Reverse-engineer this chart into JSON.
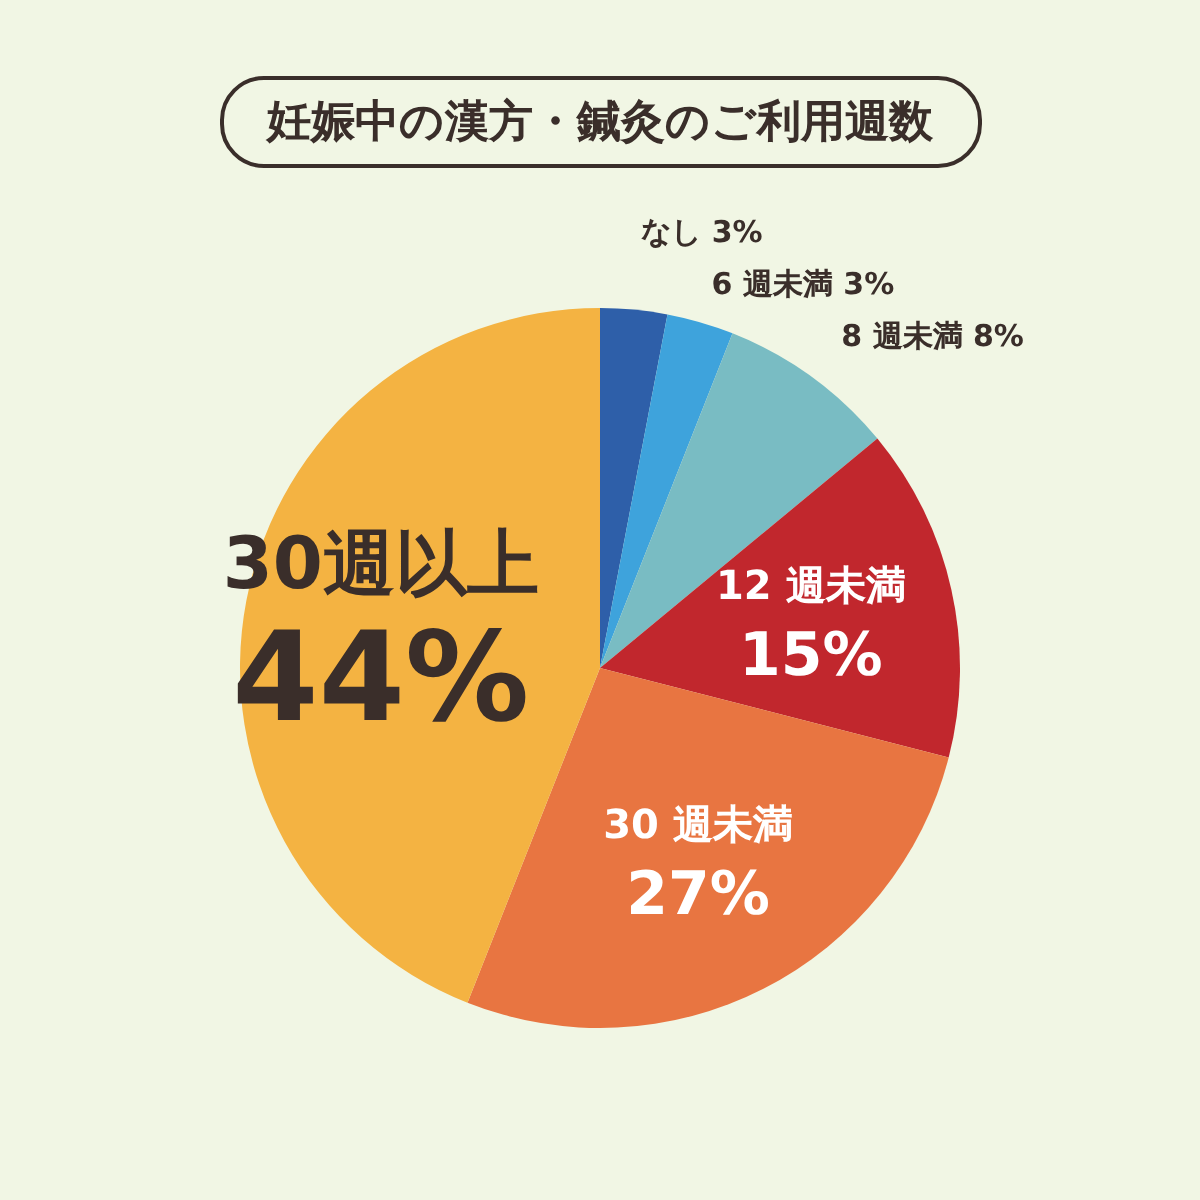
{
  "chart_data": {
    "type": "pie",
    "title": "妊娠中の漢方・鍼灸のご利用週数",
    "categories": [
      "なし",
      "6 週未満",
      "8 週未満",
      "12 週未満",
      "30 週未満",
      "30週以上"
    ],
    "values": [
      3,
      3,
      8,
      15,
      27,
      44
    ],
    "value_labels": [
      "3%",
      "3%",
      "8%",
      "15%",
      "27%",
      "44%"
    ],
    "colors": [
      "#2e5fa9",
      "#3ea3dc",
      "#79bcc3",
      "#c1272d",
      "#e87541",
      "#f4b342"
    ]
  }
}
